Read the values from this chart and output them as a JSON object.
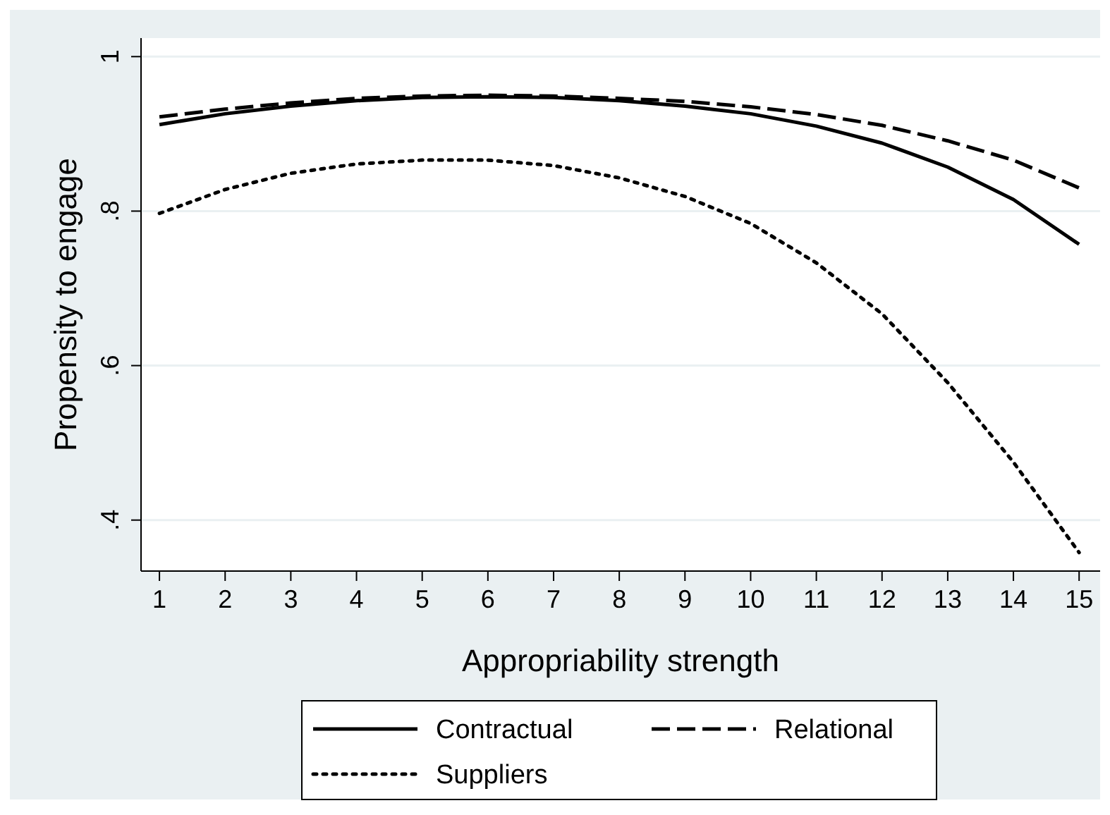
{
  "chart_data": {
    "type": "line",
    "xlabel": "Appropriability strength",
    "ylabel": "Propensity to engage",
    "x": [
      1,
      2,
      3,
      4,
      5,
      6,
      7,
      8,
      9,
      10,
      11,
      12,
      13,
      14,
      15
    ],
    "xlim": [
      0.72,
      15.32
    ],
    "xticks": [
      1,
      2,
      3,
      4,
      5,
      6,
      7,
      8,
      9,
      10,
      11,
      12,
      13,
      14,
      15
    ],
    "ylim": [
      0.334,
      1.024
    ],
    "yticks": [
      {
        "value": 0.4,
        "label": ".4"
      },
      {
        "value": 0.6,
        "label": ".6"
      },
      {
        "value": 0.8,
        "label": ".8"
      },
      {
        "value": 1,
        "label": "1"
      }
    ],
    "grid": "y",
    "legend": "bottom",
    "marker": "none",
    "series": [
      {
        "name": "Contractual",
        "color": "#000000",
        "line_style": "solid",
        "values": [
          0.912,
          0.926,
          0.936,
          0.943,
          0.947,
          0.948,
          0.947,
          0.943,
          0.936,
          0.926,
          0.91,
          0.888,
          0.857,
          0.815,
          0.757
        ]
      },
      {
        "name": "Relational",
        "color": "#000000",
        "line_style": "dashed",
        "values": [
          0.922,
          0.932,
          0.94,
          0.946,
          0.949,
          0.95,
          0.949,
          0.946,
          0.942,
          0.935,
          0.925,
          0.911,
          0.891,
          0.866,
          0.83
        ]
      },
      {
        "name": "Suppliers",
        "color": "#000000",
        "line_style": "dotted",
        "values": [
          0.797,
          0.828,
          0.849,
          0.861,
          0.866,
          0.866,
          0.859,
          0.843,
          0.819,
          0.784,
          0.733,
          0.667,
          0.578,
          0.475,
          0.358
        ]
      }
    ]
  }
}
